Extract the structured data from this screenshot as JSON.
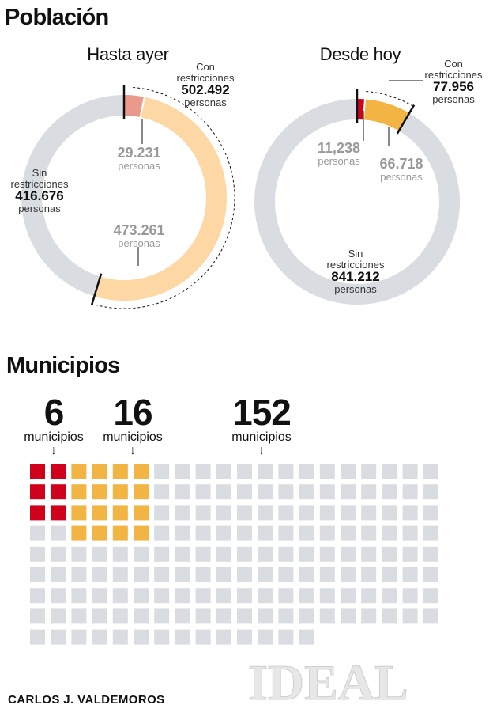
{
  "poblacion": {
    "title": "Población",
    "unit": "personas",
    "cat_con": "Con\nrestricciones",
    "cat_sin": "Sin\nrestricciones"
  },
  "chart_data": [
    {
      "type": "pie",
      "title": "Hasta ayer",
      "slices": [
        {
          "label": "29.231",
          "value": 29231,
          "color": "#e99a8c"
        },
        {
          "label": "473.261",
          "value": 473261,
          "color": "#fdd7a4"
        },
        {
          "label": "416.676",
          "value": 416676,
          "color": "#d9dde1"
        }
      ],
      "con_total": "502.492",
      "sin_total": "416.676"
    },
    {
      "type": "pie",
      "title": "Desde hoy",
      "slices": [
        {
          "label": "11,238",
          "value": 11238,
          "color": "#d0021b"
        },
        {
          "label": "66.718",
          "value": 66718,
          "color": "#f2b443"
        },
        {
          "label": "841.212",
          "value": 841212,
          "color": "#d9dde1"
        }
      ],
      "con_total": "77.956",
      "sin_total": "841.212"
    },
    {
      "type": "waffle",
      "title": "Municipios",
      "unit": "municipios",
      "groups": [
        {
          "label": "6",
          "value": 6,
          "color": "#d0021b"
        },
        {
          "label": "16",
          "value": 16,
          "color": "#f2b443"
        },
        {
          "label": "152",
          "value": 152,
          "color": "#d9dde1"
        }
      ]
    }
  ],
  "footer": {
    "author": "CARLOS J. VALDEMOROS",
    "logo": "IDEAL"
  }
}
